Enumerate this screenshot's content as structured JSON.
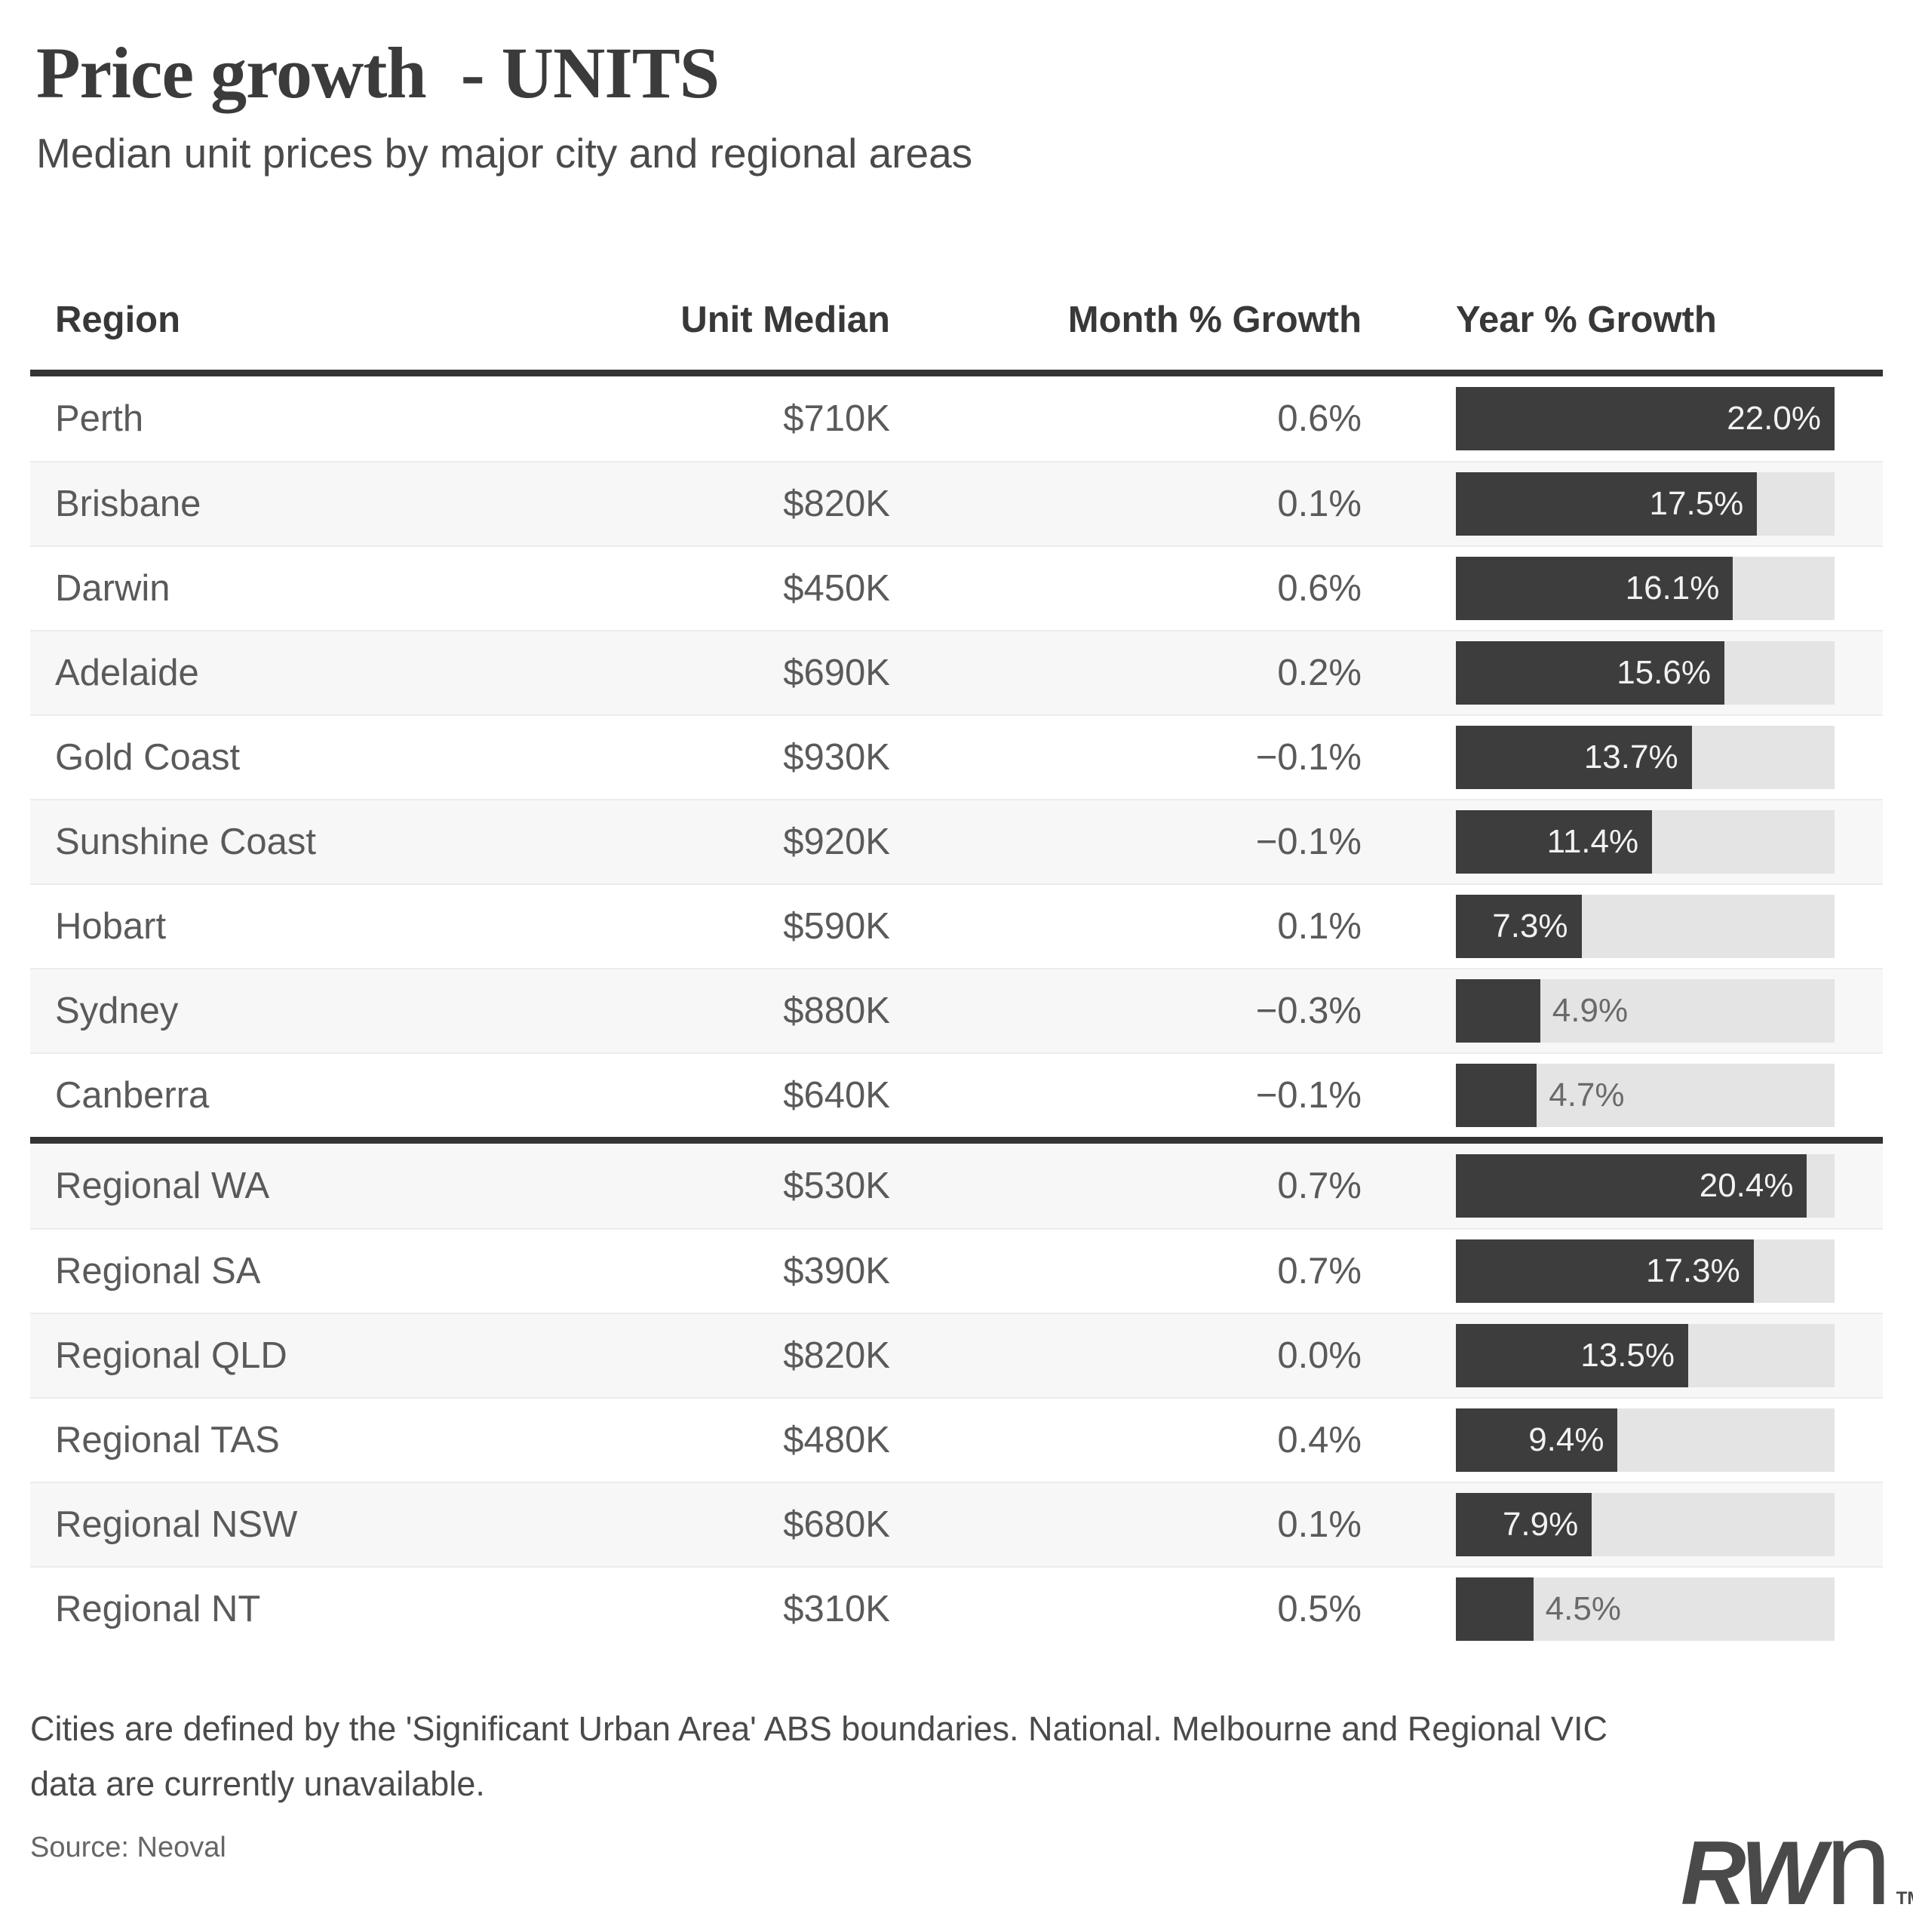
{
  "title": "Price growth  - UNITS",
  "subtitle": "Median unit prices by major city and regional areas",
  "footnote_lines": [
    "Cities are defined by the 'Significant Urban Area' ABS boundaries. National. Melbourne and Regional VIC",
    "data are currently unavailable."
  ],
  "source": "Source: Neoval",
  "logo": {
    "bold": "RW",
    "light": "n",
    "tm": "TM"
  },
  "colors": {
    "bar_fill": "#3d3d3d",
    "bar_track": "#e4e4e4",
    "row_alt_bg": "#f7f7f7",
    "divider": "#333333",
    "label_inside": "#f2f2f2",
    "label_outside": "#6a6a6a"
  },
  "table": {
    "columns": [
      "Region",
      "Unit Median",
      "Month % Growth",
      "Year % Growth"
    ],
    "bar_scale_max_pct": 22.0,
    "label_inside_min_pct": 5.0
  },
  "chart_data": {
    "type": "table",
    "title": "Price growth  - UNITS",
    "subtitle": "Median unit prices by major city and regional areas",
    "columns": [
      "Region",
      "Unit Median",
      "Month % Growth",
      "Year % Growth"
    ],
    "bar_column": "Year % Growth",
    "bar_axis_max": 22.0,
    "groups": [
      {
        "name": "cities",
        "rows": [
          {
            "region": "Perth",
            "unit_median": "$710K",
            "month_growth": "0.6%",
            "year_growth_pct": 22.0,
            "year_growth_label": "22.0%"
          },
          {
            "region": "Brisbane",
            "unit_median": "$820K",
            "month_growth": "0.1%",
            "year_growth_pct": 17.5,
            "year_growth_label": "17.5%"
          },
          {
            "region": "Darwin",
            "unit_median": "$450K",
            "month_growth": "0.6%",
            "year_growth_pct": 16.1,
            "year_growth_label": "16.1%"
          },
          {
            "region": "Adelaide",
            "unit_median": "$690K",
            "month_growth": "0.2%",
            "year_growth_pct": 15.6,
            "year_growth_label": "15.6%"
          },
          {
            "region": "Gold Coast",
            "unit_median": "$930K",
            "month_growth": "−0.1%",
            "year_growth_pct": 13.7,
            "year_growth_label": "13.7%"
          },
          {
            "region": "Sunshine Coast",
            "unit_median": "$920K",
            "month_growth": "−0.1%",
            "year_growth_pct": 11.4,
            "year_growth_label": "11.4%"
          },
          {
            "region": "Hobart",
            "unit_median": "$590K",
            "month_growth": "0.1%",
            "year_growth_pct": 7.3,
            "year_growth_label": "7.3%"
          },
          {
            "region": "Sydney",
            "unit_median": "$880K",
            "month_growth": "−0.3%",
            "year_growth_pct": 4.9,
            "year_growth_label": "4.9%"
          },
          {
            "region": "Canberra",
            "unit_median": "$640K",
            "month_growth": "−0.1%",
            "year_growth_pct": 4.7,
            "year_growth_label": "4.7%"
          }
        ]
      },
      {
        "name": "regional",
        "rows": [
          {
            "region": "Regional WA",
            "unit_median": "$530K",
            "month_growth": "0.7%",
            "year_growth_pct": 20.4,
            "year_growth_label": "20.4%"
          },
          {
            "region": "Regional SA",
            "unit_median": "$390K",
            "month_growth": "0.7%",
            "year_growth_pct": 17.3,
            "year_growth_label": "17.3%"
          },
          {
            "region": "Regional QLD",
            "unit_median": "$820K",
            "month_growth": "0.0%",
            "year_growth_pct": 13.5,
            "year_growth_label": "13.5%"
          },
          {
            "region": "Regional TAS",
            "unit_median": "$480K",
            "month_growth": "0.4%",
            "year_growth_pct": 9.4,
            "year_growth_label": "9.4%"
          },
          {
            "region": "Regional NSW",
            "unit_median": "$680K",
            "month_growth": "0.1%",
            "year_growth_pct": 7.9,
            "year_growth_label": "7.9%"
          },
          {
            "region": "Regional NT",
            "unit_median": "$310K",
            "month_growth": "0.5%",
            "year_growth_pct": 4.5,
            "year_growth_label": "4.5%"
          }
        ]
      }
    ]
  }
}
